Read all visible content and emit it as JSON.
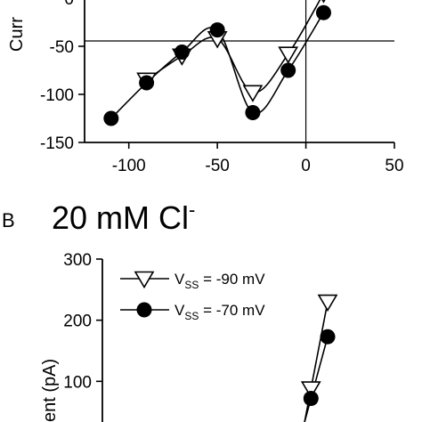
{
  "chart_data": [
    {
      "type": "line",
      "panel": "A",
      "ylabel_visible": "Curr",
      "xlim": [
        -125,
        50
      ],
      "ylim": [
        -150,
        0
      ],
      "x_ticks": [
        "-100",
        "-50",
        "0",
        "50"
      ],
      "y_ticks": [
        "0",
        "-50",
        "-100",
        "-150"
      ],
      "series": [
        {
          "marker": "triangle-down-open",
          "points": [
            {
              "x": -90,
              "y": -85
            },
            {
              "x": -70,
              "y": -60
            },
            {
              "x": -50,
              "y": -42
            },
            {
              "x": -30,
              "y": -98
            },
            {
              "x": -10,
              "y": -58
            },
            {
              "x": 10,
              "y": 5
            }
          ]
        },
        {
          "marker": "circle-filled",
          "points": [
            {
              "x": -110,
              "y": -125
            },
            {
              "x": -90,
              "y": -88
            },
            {
              "x": -70,
              "y": -56
            },
            {
              "x": -50,
              "y": -33
            },
            {
              "x": -30,
              "y": -119
            },
            {
              "x": -10,
              "y": -75
            },
            {
              "x": 10,
              "y": -15
            }
          ]
        }
      ]
    },
    {
      "type": "line",
      "panel": "B",
      "panel_label": "B",
      "title": "20 mM Cl",
      "title_superscript": "-",
      "ylabel_visible": "ent (pA)",
      "xlim": [
        -125,
        50
      ],
      "ylim": [
        0,
        300
      ],
      "y_ticks": [
        "300",
        "200",
        "100"
      ],
      "series": [
        {
          "name": "V",
          "name_sub": "SS",
          "legend_value": " = -90 mV",
          "marker": "triangle-down-open",
          "points": [
            {
              "x": 0,
              "y": 88
            },
            {
              "x": 10,
              "y": 230
            }
          ]
        },
        {
          "name": "V",
          "name_sub": "SS",
          "legend_value": " = -70 mV",
          "marker": "circle-filled",
          "points": [
            {
              "x": 0,
              "y": 72
            },
            {
              "x": 10,
              "y": 173
            }
          ]
        }
      ]
    }
  ]
}
